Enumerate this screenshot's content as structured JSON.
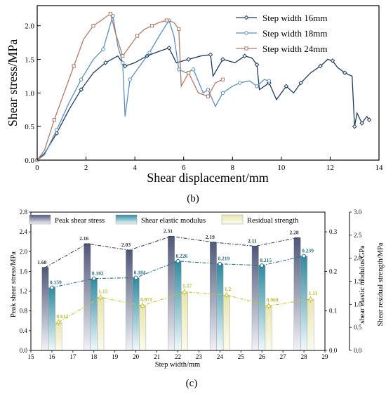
{
  "chart_data": [
    {
      "panel": "(b)",
      "type": "line",
      "xlabel": "Shear displacement/mm",
      "ylabel": "Shear stress/MPa",
      "xlim": [
        0,
        14
      ],
      "ylim": [
        0,
        2.3
      ],
      "xticks": [
        0,
        2,
        4,
        6,
        8,
        10,
        12,
        14
      ],
      "yticks": [
        0.0,
        0.5,
        1.0,
        1.5,
        2.0
      ],
      "legend_position": "top-right",
      "series": [
        {
          "name": "Step width 16mm",
          "color": "#1f3a5c",
          "marker": "diamond",
          "points": [
            [
              0,
              0
            ],
            [
              0.3,
              0.1
            ],
            [
              0.8,
              0.4
            ],
            [
              1.3,
              0.75
            ],
            [
              1.8,
              1.05
            ],
            [
              2.3,
              1.3
            ],
            [
              2.8,
              1.45
            ],
            [
              3.3,
              1.55
            ],
            [
              3.6,
              1.4
            ],
            [
              4.0,
              1.45
            ],
            [
              4.5,
              1.55
            ],
            [
              5.0,
              1.62
            ],
            [
              5.4,
              1.67
            ],
            [
              5.7,
              1.45
            ],
            [
              6.2,
              1.5
            ],
            [
              6.7,
              1.55
            ],
            [
              7.1,
              1.57
            ],
            [
              7.2,
              1.25
            ],
            [
              7.6,
              1.5
            ],
            [
              8.1,
              1.45
            ],
            [
              8.5,
              1.55
            ],
            [
              8.8,
              1.52
            ],
            [
              9.0,
              1.42
            ],
            [
              9.1,
              1.05
            ],
            [
              9.5,
              1.15
            ],
            [
              9.8,
              0.9
            ],
            [
              10.2,
              1.1
            ],
            [
              10.5,
              1.0
            ],
            [
              10.8,
              1.15
            ],
            [
              11.2,
              1.3
            ],
            [
              11.6,
              1.4
            ],
            [
              11.9,
              1.5
            ],
            [
              12.1,
              1.48
            ],
            [
              12.3,
              1.38
            ],
            [
              12.6,
              1.3
            ],
            [
              12.9,
              1.25
            ],
            [
              13.0,
              0.5
            ],
            [
              13.1,
              0.7
            ],
            [
              13.3,
              0.55
            ],
            [
              13.5,
              0.65
            ],
            [
              13.6,
              0.6
            ]
          ]
        },
        {
          "name": "Step width 18mm",
          "color": "#5b8fb9",
          "marker": "circle",
          "points": [
            [
              0,
              0
            ],
            [
              0.3,
              0.08
            ],
            [
              0.8,
              0.45
            ],
            [
              1.3,
              0.85
            ],
            [
              1.8,
              1.2
            ],
            [
              2.3,
              1.5
            ],
            [
              2.7,
              1.65
            ],
            [
              2.9,
              1.9
            ],
            [
              3.1,
              2.15
            ],
            [
              3.3,
              1.7
            ],
            [
              3.5,
              1.45
            ],
            [
              3.6,
              0.65
            ],
            [
              3.8,
              1.2
            ],
            [
              4.2,
              1.4
            ],
            [
              4.6,
              1.6
            ],
            [
              5.0,
              1.85
            ],
            [
              5.4,
              2.08
            ],
            [
              5.6,
              1.85
            ],
            [
              5.8,
              1.35
            ],
            [
              6.1,
              1.3
            ],
            [
              6.4,
              1.35
            ],
            [
              6.8,
              1.0
            ],
            [
              7.0,
              1.05
            ],
            [
              7.3,
              0.8
            ],
            [
              7.6,
              1.0
            ],
            [
              8.0,
              1.1
            ],
            [
              8.3,
              1.15
            ],
            [
              8.7,
              1.18
            ],
            [
              9.0,
              1.1
            ],
            [
              9.3,
              1.2
            ],
            [
              9.5,
              1.18
            ]
          ]
        },
        {
          "name": "Step width 24mm",
          "color": "#b07a6a",
          "marker": "square",
          "points": [
            [
              0,
              0
            ],
            [
              0.3,
              0.15
            ],
            [
              0.7,
              0.6
            ],
            [
              1.1,
              1.0
            ],
            [
              1.5,
              1.4
            ],
            [
              1.9,
              1.8
            ],
            [
              2.3,
              2.0
            ],
            [
              2.7,
              2.1
            ],
            [
              3.0,
              2.18
            ],
            [
              3.2,
              1.9
            ],
            [
              3.5,
              1.55
            ],
            [
              3.8,
              1.7
            ],
            [
              4.1,
              1.85
            ],
            [
              4.4,
              1.95
            ],
            [
              4.7,
              2.0
            ],
            [
              5.0,
              2.05
            ],
            [
              5.3,
              2.08
            ],
            [
              5.6,
              2.05
            ],
            [
              5.8,
              1.95
            ],
            [
              5.9,
              1.1
            ],
            [
              6.2,
              1.3
            ],
            [
              6.6,
              1.0
            ],
            [
              7.0,
              0.95
            ],
            [
              7.3,
              1.15
            ],
            [
              7.6,
              1.2
            ]
          ]
        }
      ]
    },
    {
      "panel": "(c)",
      "type": "bar",
      "xlabel": "Step width/mm",
      "ylabel_left": "Peak shear stress/MPa",
      "ylabel_right_inner": "shear elastic modulus/GPa",
      "ylabel_right_outer": "Shear residual strength/MPa",
      "xlim": [
        15,
        29
      ],
      "xticks": [
        15,
        16,
        17,
        18,
        19,
        20,
        21,
        22,
        23,
        24,
        25,
        26,
        27,
        28,
        29
      ],
      "ylim_left": [
        0,
        2.8
      ],
      "yticks_left": [
        0.0,
        0.4,
        0.8,
        1.2,
        1.6,
        2.0,
        2.4,
        2.8
      ],
      "ylim_right_inner": [
        0,
        0.35
      ],
      "yticks_right_inner": [
        0.0,
        0.1,
        0.2,
        0.3
      ],
      "ylim_right_outer": [
        0,
        3.0
      ],
      "yticks_right_outer": [
        0.0,
        0.5,
        1.0,
        1.5,
        2.0,
        2.5,
        3.0
      ],
      "legend_position": "top",
      "categories": [
        16,
        18,
        20,
        22,
        24,
        26,
        28
      ],
      "series": [
        {
          "name": "Peak shear stress",
          "axis": "left",
          "values": [
            1.68,
            2.16,
            2.03,
            2.31,
            2.19,
            2.11,
            2.28
          ],
          "labels": [
            "1.68",
            "2.16",
            "2.03",
            "2.31",
            "2.19",
            "2.11",
            "2.28"
          ],
          "color": "#5a6585",
          "label_color": "#333333"
        },
        {
          "name": "Shear elastic modulus",
          "axis": "right_inner",
          "values": [
            0.159,
            0.182,
            0.184,
            0.226,
            0.219,
            0.215,
            0.239
          ],
          "labels": [
            "0.159",
            "0.182",
            "0.184",
            "0.226",
            "0.219",
            "0.215",
            "0.239"
          ],
          "color": "#3a8fa3",
          "label_color": "#2a6f86"
        },
        {
          "name": "Residual strength",
          "axis": "right_outer",
          "values": [
            0.612,
            1.15,
            0.971,
            1.27,
            1.2,
            0.969,
            1.11
          ],
          "labels": [
            "0.612",
            "1.15",
            "0.971",
            "1.27",
            "1.2",
            "0.969",
            "1.11"
          ],
          "color": "#e8e6b0",
          "label_color": "#b8b830"
        }
      ]
    }
  ],
  "captions": {
    "b": "(b)",
    "c": "(c)"
  }
}
